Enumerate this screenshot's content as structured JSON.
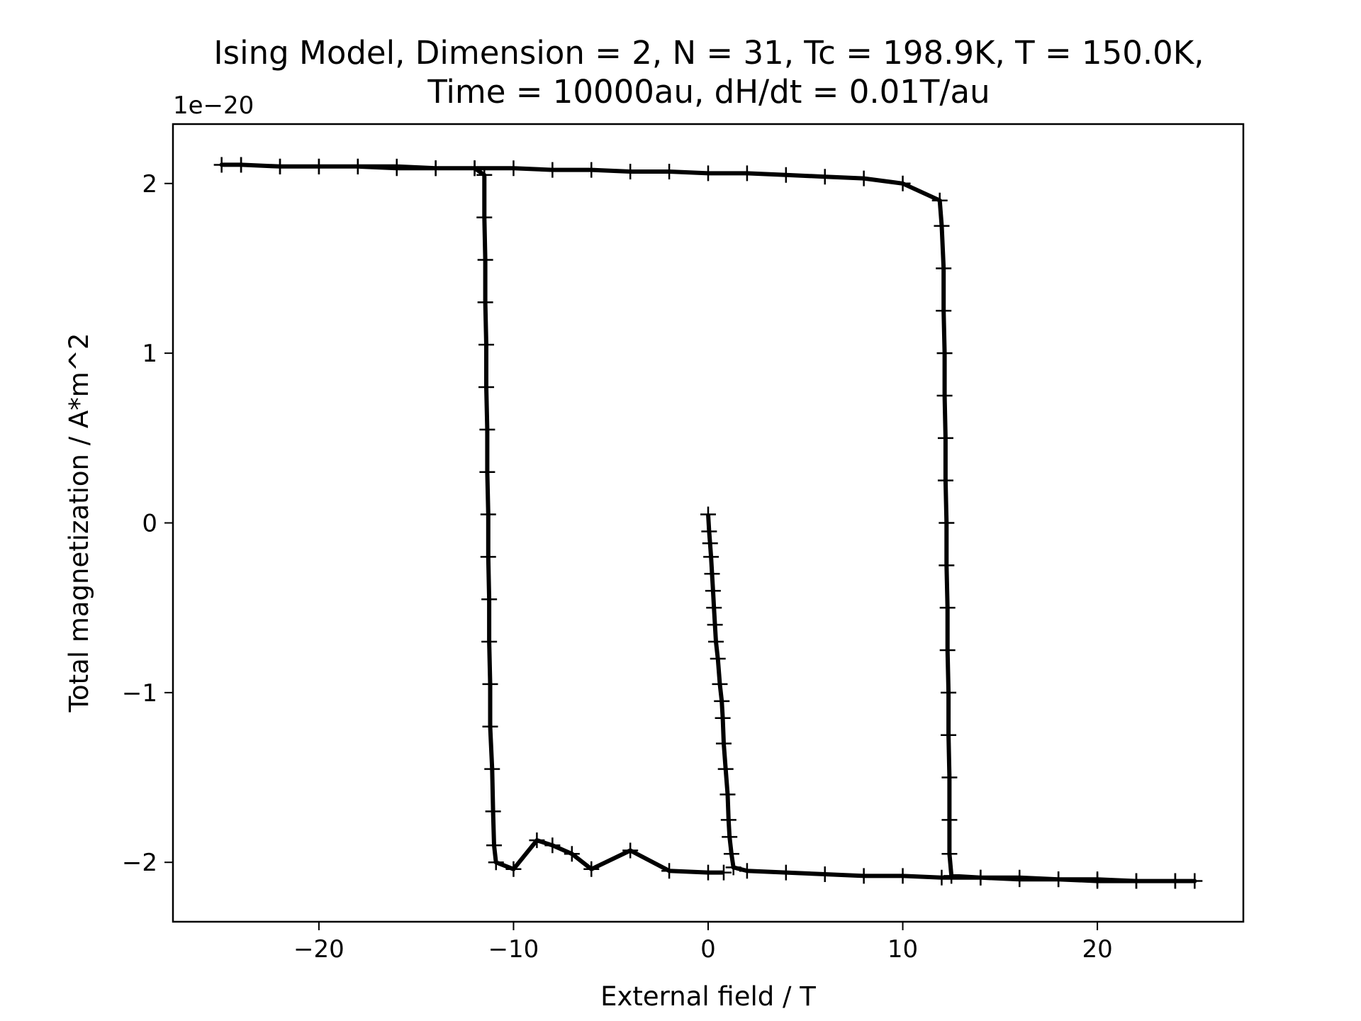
{
  "chart_data": {
    "type": "scatter",
    "title_lines": [
      "Ising Model, Dimension = 2, N = 31, Tc = 198.9K, T = 150.0K,",
      "Time = 10000au, dH/dt = 0.01T/au"
    ],
    "xlabel": "External field / T",
    "ylabel": "Total magnetization / A*m^2",
    "y_offset_label": "1e−20",
    "y_scale_factor": 1e-20,
    "xlim": [
      -27.5,
      27.5
    ],
    "ylim": [
      -2.35,
      2.35
    ],
    "x_ticks": [
      -20,
      -10,
      0,
      10,
      20
    ],
    "x_tick_labels": [
      "−20",
      "−10",
      "0",
      "10",
      "20"
    ],
    "y_ticks": [
      -2,
      -1,
      0,
      1,
      2
    ],
    "y_tick_labels": [
      "−2",
      "−1",
      "0",
      "1",
      "2"
    ],
    "grid": false,
    "marker": "+",
    "color": "#000000",
    "series": [
      {
        "points": [
          [
            0.0,
            0.05
          ],
          [
            0.05,
            -0.05
          ],
          [
            0.1,
            -0.12
          ],
          [
            0.15,
            -0.2
          ],
          [
            0.2,
            -0.3
          ],
          [
            0.25,
            -0.4
          ],
          [
            0.3,
            -0.5
          ],
          [
            0.35,
            -0.6
          ],
          [
            0.4,
            -0.7
          ],
          [
            0.5,
            -0.8
          ],
          [
            0.6,
            -0.95
          ],
          [
            0.7,
            -1.05
          ],
          [
            0.75,
            -1.15
          ],
          [
            0.8,
            -1.3
          ],
          [
            0.9,
            -1.45
          ],
          [
            1.0,
            -1.6
          ],
          [
            1.05,
            -1.75
          ],
          [
            1.1,
            -1.85
          ],
          [
            1.2,
            -1.95
          ],
          [
            1.3,
            -2.03
          ],
          [
            2,
            -2.05
          ],
          [
            4,
            -2.06
          ],
          [
            6,
            -2.07
          ],
          [
            8,
            -2.08
          ],
          [
            10,
            -2.08
          ],
          [
            12,
            -2.09
          ],
          [
            14,
            -2.09
          ],
          [
            16,
            -2.1
          ],
          [
            18,
            -2.1
          ],
          [
            20,
            -2.11
          ],
          [
            22,
            -2.11
          ],
          [
            24,
            -2.11
          ],
          [
            25,
            -2.11
          ],
          [
            24,
            -2.11
          ],
          [
            22,
            -2.11
          ],
          [
            20,
            -2.1
          ],
          [
            18,
            -2.1
          ],
          [
            16,
            -2.09
          ],
          [
            14,
            -2.09
          ],
          [
            12.5,
            -2.08
          ],
          [
            12.4,
            -1.95
          ],
          [
            12.4,
            -1.75
          ],
          [
            12.4,
            -1.5
          ],
          [
            12.35,
            -1.25
          ],
          [
            12.35,
            -1.0
          ],
          [
            12.3,
            -0.75
          ],
          [
            12.3,
            -0.5
          ],
          [
            12.25,
            -0.25
          ],
          [
            12.25,
            0.0
          ],
          [
            12.2,
            0.25
          ],
          [
            12.2,
            0.5
          ],
          [
            12.15,
            0.75
          ],
          [
            12.15,
            1.0
          ],
          [
            12.1,
            1.25
          ],
          [
            12.1,
            1.5
          ],
          [
            12.0,
            1.75
          ],
          [
            11.9,
            1.9
          ],
          [
            10,
            2.0
          ],
          [
            8,
            2.03
          ],
          [
            6,
            2.04
          ],
          [
            4,
            2.05
          ],
          [
            2,
            2.06
          ],
          [
            0,
            2.06
          ],
          [
            -2,
            2.07
          ],
          [
            -4,
            2.07
          ],
          [
            -6,
            2.08
          ],
          [
            -8,
            2.08
          ],
          [
            -10,
            2.09
          ],
          [
            -12,
            2.09
          ],
          [
            -14,
            2.09
          ],
          [
            -16,
            2.1
          ],
          [
            -18,
            2.1
          ],
          [
            -20,
            2.1
          ],
          [
            -22,
            2.1
          ],
          [
            -24,
            2.11
          ],
          [
            -25,
            2.11
          ],
          [
            -24,
            2.11
          ],
          [
            -22,
            2.1
          ],
          [
            -20,
            2.1
          ],
          [
            -18,
            2.1
          ],
          [
            -16,
            2.09
          ],
          [
            -14,
            2.09
          ],
          [
            -12,
            2.09
          ],
          [
            -11.5,
            2.05
          ],
          [
            -11.5,
            1.8
          ],
          [
            -11.45,
            1.55
          ],
          [
            -11.45,
            1.3
          ],
          [
            -11.4,
            1.05
          ],
          [
            -11.4,
            0.8
          ],
          [
            -11.35,
            0.55
          ],
          [
            -11.35,
            0.3
          ],
          [
            -11.3,
            0.05
          ],
          [
            -11.3,
            -0.2
          ],
          [
            -11.25,
            -0.45
          ],
          [
            -11.25,
            -0.7
          ],
          [
            -11.2,
            -0.95
          ],
          [
            -11.2,
            -1.2
          ],
          [
            -11.1,
            -1.45
          ],
          [
            -11.05,
            -1.7
          ],
          [
            -11.0,
            -1.9
          ],
          [
            -10.9,
            -2.0
          ],
          [
            -10,
            -2.04
          ],
          [
            -8.8,
            -1.87
          ],
          [
            -8,
            -1.9
          ],
          [
            -7,
            -1.95
          ],
          [
            -6,
            -2.04
          ],
          [
            -4,
            -1.93
          ],
          [
            -2,
            -2.05
          ],
          [
            0,
            -2.06
          ],
          [
            0.8,
            -2.06
          ]
        ]
      }
    ]
  }
}
